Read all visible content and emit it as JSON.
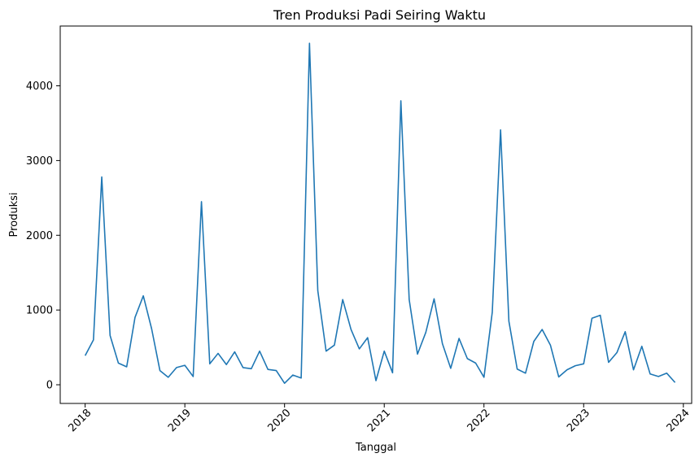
{
  "chart_data": {
    "type": "line",
    "title": "Tren Produksi Padi Seiring Waktu",
    "xlabel": "Tanggal",
    "ylabel": "Produksi",
    "x_ticks": [
      "2018",
      "2019",
      "2020",
      "2021",
      "2022",
      "2023",
      "2024"
    ],
    "y_ticks": [
      0,
      1000,
      2000,
      3000,
      4000
    ],
    "ylim": [
      -250,
      4800
    ],
    "xlim": [
      "2017-10",
      "2024-02"
    ],
    "grid": false,
    "color": "#1f77b4",
    "series": [
      {
        "x": [
          "2018-01",
          "2018-02",
          "2018-03",
          "2018-04",
          "2018-05",
          "2018-06",
          "2018-07",
          "2018-08",
          "2018-09",
          "2018-10",
          "2018-11",
          "2018-12",
          "2019-01",
          "2019-02",
          "2019-03",
          "2019-04",
          "2019-05",
          "2019-06",
          "2019-07",
          "2019-08",
          "2019-09",
          "2019-10",
          "2019-11",
          "2019-12",
          "2020-01",
          "2020-02",
          "2020-03",
          "2020-04",
          "2020-05",
          "2020-06",
          "2020-07",
          "2020-08",
          "2020-09",
          "2020-10",
          "2020-11",
          "2020-12",
          "2021-01",
          "2021-02",
          "2021-03",
          "2021-04",
          "2021-05",
          "2021-06",
          "2021-07",
          "2021-08",
          "2021-09",
          "2021-10",
          "2021-11",
          "2021-12",
          "2022-01",
          "2022-02",
          "2022-03",
          "2022-04",
          "2022-05",
          "2022-06",
          "2022-07",
          "2022-08",
          "2022-09",
          "2022-10",
          "2022-11",
          "2022-12",
          "2023-01",
          "2023-02",
          "2023-03",
          "2023-04",
          "2023-05",
          "2023-06",
          "2023-07",
          "2023-08",
          "2023-09",
          "2023-10",
          "2023-11",
          "2023-12"
        ],
        "values": [
          390,
          600,
          2780,
          660,
          290,
          240,
          900,
          1190,
          750,
          190,
          100,
          230,
          260,
          110,
          2450,
          280,
          420,
          270,
          440,
          230,
          215,
          450,
          205,
          190,
          20,
          130,
          90,
          4570,
          1260,
          450,
          530,
          1140,
          740,
          480,
          630,
          55,
          450,
          160,
          3800,
          1140,
          410,
          700,
          1150,
          550,
          220,
          620,
          350,
          290,
          100,
          970,
          3410,
          850,
          210,
          155,
          580,
          740,
          530,
          105,
          200,
          255,
          280,
          890,
          930,
          300,
          430,
          710,
          200,
          515,
          145,
          110,
          155,
          30
        ]
      }
    ]
  }
}
